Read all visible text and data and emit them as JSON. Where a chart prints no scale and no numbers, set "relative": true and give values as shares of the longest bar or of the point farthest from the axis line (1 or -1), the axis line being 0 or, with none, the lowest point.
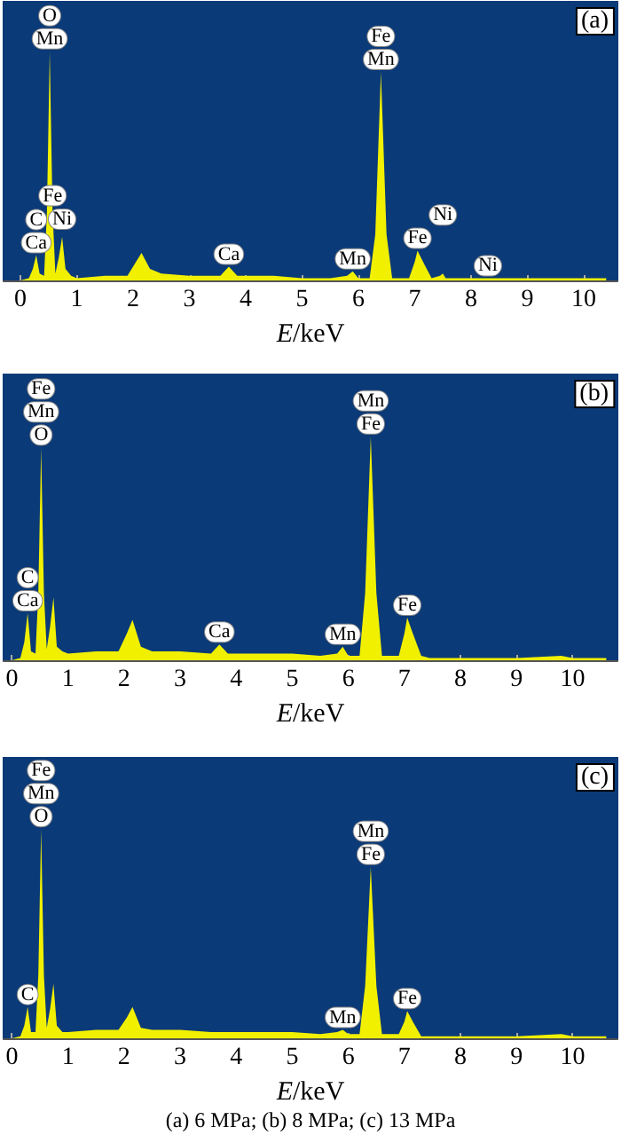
{
  "chart_data": [
    {
      "type": "area",
      "title": "(a)",
      "xlabel": "E/keV",
      "relative": true,
      "xlim": [
        -0.3,
        10.6
      ],
      "xticks": [
        0,
        1,
        2,
        3,
        4,
        5,
        6,
        7,
        8,
        9,
        10
      ],
      "x": [
        0,
        0.15,
        0.22,
        0.28,
        0.34,
        0.42,
        0.47,
        0.52,
        0.57,
        0.62,
        0.68,
        0.74,
        0.8,
        0.9,
        1.0,
        1.5,
        1.9,
        2.05,
        2.15,
        2.3,
        2.5,
        3.0,
        3.55,
        3.7,
        3.85,
        4.5,
        5.0,
        5.5,
        5.8,
        5.9,
        6.0,
        6.2,
        6.3,
        6.4,
        6.5,
        6.6,
        6.9,
        7.0,
        7.05,
        7.15,
        7.3,
        7.45,
        7.5,
        7.55,
        8.3,
        9.0,
        9.8,
        10.0,
        10.4
      ],
      "series": [
        {
          "color": "#f0f000",
          "values": [
            0,
            0.01,
            0.05,
            0.11,
            0.03,
            0.02,
            0.3,
            1,
            0.3,
            0.03,
            0.1,
            0.19,
            0.05,
            0.02,
            0.01,
            0.02,
            0.02,
            0.08,
            0.12,
            0.05,
            0.03,
            0.02,
            0.02,
            0.06,
            0.02,
            0.02,
            0.01,
            0.01,
            0.02,
            0.04,
            0.01,
            0.01,
            0.2,
            0.91,
            0.2,
            0.01,
            0.01,
            0.08,
            0.13,
            0.08,
            0.01,
            0.02,
            0.03,
            0.01,
            0.01,
            0.01,
            0.01,
            0.01,
            0.01
          ]
        }
      ],
      "annotations": [
        {
          "text": "Mn",
          "x": 0.52,
          "y": 1
        },
        {
          "text": "O",
          "x": 0.52,
          "y": 1
        },
        {
          "text": "Ca",
          "x": 0.28,
          "y": 0.11
        },
        {
          "text": "C",
          "x": 0.28,
          "y": 0.11
        },
        {
          "text": "Ni",
          "x": 0.74,
          "y": 0.19
        },
        {
          "text": "Fe",
          "x": 0.57,
          "y": 0.3
        },
        {
          "text": "Ca",
          "x": 3.7,
          "y": 0.06
        },
        {
          "text": "Mn",
          "x": 5.9,
          "y": 0.04
        },
        {
          "text": "Mn",
          "x": 6.4,
          "y": 0.91
        },
        {
          "text": "Fe",
          "x": 6.4,
          "y": 0.91
        },
        {
          "text": "Fe",
          "x": 7.05,
          "y": 0.13
        },
        {
          "text": "Ni",
          "x": 7.5,
          "y": 0.03
        },
        {
          "text": "Ni",
          "x": 8.3,
          "y": 0.01
        }
      ]
    },
    {
      "type": "area",
      "title": "(b)",
      "xlabel": "E/keV",
      "relative": true,
      "xlim": [
        -0.15,
        10.8
      ],
      "xticks": [
        0,
        1,
        2,
        3,
        4,
        5,
        6,
        7,
        8,
        9,
        10
      ],
      "x": [
        0,
        0.15,
        0.22,
        0.28,
        0.34,
        0.42,
        0.47,
        0.52,
        0.57,
        0.62,
        0.68,
        0.74,
        0.8,
        0.9,
        1.0,
        1.5,
        1.9,
        2.05,
        2.15,
        2.3,
        2.5,
        3.0,
        3.55,
        3.7,
        3.85,
        4.5,
        5.0,
        5.5,
        5.8,
        5.9,
        6.0,
        6.2,
        6.3,
        6.4,
        6.5,
        6.6,
        6.9,
        7.0,
        7.05,
        7.15,
        7.3,
        7.45,
        7.5,
        7.55,
        8.3,
        9.0,
        9.8,
        10.0,
        10.6
      ],
      "series": [
        {
          "color": "#f0f000",
          "values": [
            0,
            0.01,
            0.08,
            0.21,
            0.04,
            0.03,
            0.3,
            0.95,
            0.3,
            0.05,
            0.15,
            0.28,
            0.06,
            0.04,
            0.03,
            0.04,
            0.04,
            0.12,
            0.18,
            0.06,
            0.04,
            0.04,
            0.03,
            0.07,
            0.03,
            0.03,
            0.03,
            0.02,
            0.03,
            0.06,
            0.02,
            0.02,
            0.3,
            1,
            0.3,
            0.02,
            0.02,
            0.12,
            0.19,
            0.12,
            0.02,
            0.01,
            0.01,
            0.01,
            0.01,
            0.01,
            0.02,
            0.01,
            0.01
          ]
        }
      ],
      "annotations": [
        {
          "text": "O",
          "x": 0.52,
          "y": 0.95
        },
        {
          "text": "Mn",
          "x": 0.52,
          "y": 0.95
        },
        {
          "text": "Fe",
          "x": 0.52,
          "y": 0.95
        },
        {
          "text": "Ca",
          "x": 0.28,
          "y": 0.21
        },
        {
          "text": "C",
          "x": 0.28,
          "y": 0.21
        },
        {
          "text": "Ca",
          "x": 3.7,
          "y": 0.07
        },
        {
          "text": "Mn",
          "x": 5.9,
          "y": 0.06
        },
        {
          "text": "Fe",
          "x": 6.4,
          "y": 1
        },
        {
          "text": "Mn",
          "x": 6.4,
          "y": 1
        },
        {
          "text": "Fe",
          "x": 7.05,
          "y": 0.19
        }
      ]
    },
    {
      "type": "area",
      "title": "(c)",
      "xlabel": "E/keV",
      "relative": true,
      "xlim": [
        -0.15,
        10.8
      ],
      "xticks": [
        0,
        1,
        2,
        3,
        4,
        5,
        6,
        7,
        8,
        9,
        10
      ],
      "x": [
        0,
        0.15,
        0.22,
        0.28,
        0.34,
        0.42,
        0.47,
        0.52,
        0.57,
        0.62,
        0.68,
        0.74,
        0.8,
        0.9,
        1.0,
        1.5,
        1.9,
        2.05,
        2.15,
        2.3,
        2.5,
        3.0,
        3.55,
        3.7,
        3.85,
        4.5,
        5.0,
        5.5,
        5.8,
        5.9,
        6.0,
        6.2,
        6.3,
        6.4,
        6.5,
        6.6,
        6.9,
        7.0,
        7.05,
        7.15,
        7.3,
        7.45,
        7.5,
        7.55,
        8.3,
        9.0,
        9.8,
        10.0,
        10.6
      ],
      "series": [
        {
          "color": "#f0f000",
          "values": [
            0,
            0.01,
            0.06,
            0.15,
            0.03,
            0.03,
            0.3,
            1,
            0.3,
            0.05,
            0.14,
            0.26,
            0.06,
            0.03,
            0.03,
            0.04,
            0.04,
            0.1,
            0.15,
            0.05,
            0.04,
            0.04,
            0.03,
            0.03,
            0.03,
            0.03,
            0.03,
            0.02,
            0.03,
            0.04,
            0.02,
            0.02,
            0.25,
            0.82,
            0.25,
            0.02,
            0.02,
            0.08,
            0.13,
            0.08,
            0.01,
            0.01,
            0.01,
            0.01,
            0.01,
            0.01,
            0.02,
            0.01,
            0.01
          ]
        }
      ],
      "annotations": [
        {
          "text": "O",
          "x": 0.52,
          "y": 1
        },
        {
          "text": "Mn",
          "x": 0.52,
          "y": 1
        },
        {
          "text": "Fe",
          "x": 0.52,
          "y": 1
        },
        {
          "text": "C",
          "x": 0.28,
          "y": 0.15
        },
        {
          "text": "Mn",
          "x": 5.9,
          "y": 0.04
        },
        {
          "text": "Fe",
          "x": 6.4,
          "y": 0.82
        },
        {
          "text": "Mn",
          "x": 6.4,
          "y": 0.82
        },
        {
          "text": "Fe",
          "x": 7.05,
          "y": 0.13
        },
        "(a) 6 MPa; (b) 8 MPa; (c) 13 MPa"
      ]
    }
  ]
}
